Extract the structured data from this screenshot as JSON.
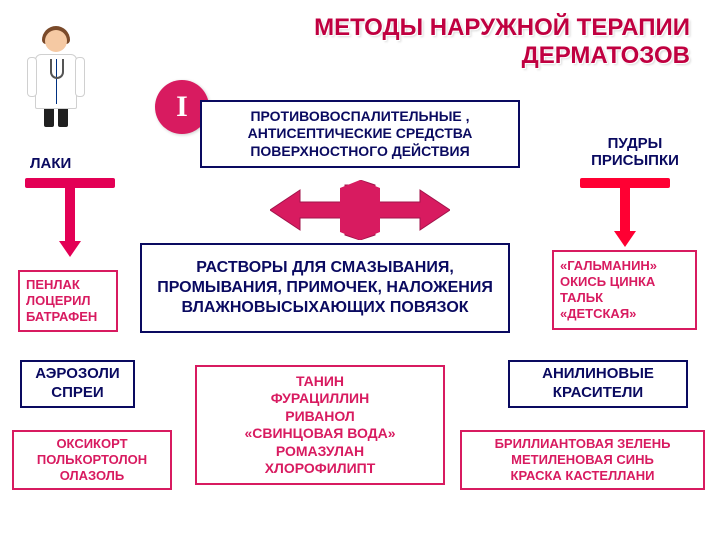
{
  "colors": {
    "accent_pink": "#d81b60",
    "accent_red": "#e30055",
    "accent_red2": "#ff0033",
    "navy": "#0a0a60",
    "title": "#c00040",
    "bg": "#ffffff"
  },
  "title": "МЕТОДЫ НАРУЖНОЙ ТЕРАПИИ ДЕРМАТОЗОВ",
  "stage_marker": "I",
  "labels": {
    "laki": "ЛАКИ",
    "pudry": "ПУДРЫ ПРИСЫПКИ"
  },
  "boxes": {
    "anti": {
      "text": "ПРОТИВОВОСПАЛИТЕЛЬНЫЕ , АНТИСЕПТИЧЕСКИЕ СРЕДСТВА ПОВЕРХНОСТНОГО ДЕЙСТВИЯ",
      "border": "#0a0a60",
      "text_color": "#0a0a60",
      "fontsize": 14
    },
    "rast": {
      "text": "РАСТВОРЫ ДЛЯ СМАЗЫВАНИЯ, ПРОМЫВАНИЯ, ПРИМОЧЕК, НАЛОЖЕНИЯ ВЛАЖНОВЫСЫХАЮЩИХ ПОВЯЗОК",
      "border": "#0a0a60",
      "text_color": "#0a0a60",
      "fontsize": 16
    },
    "pen": {
      "text": "ПЕНЛАК\nЛОЦЕРИЛ\nБАТРАФЕН",
      "border": "#d81b60",
      "text_color": "#d81b60",
      "fontsize": 13,
      "align": "left"
    },
    "galm": {
      "text": "«ГАЛЬМАНИН»\nОКИСЬ ЦИНКА\nТАЛЬК\n«ДЕТСКАЯ»",
      "border": "#d81b60",
      "text_color": "#d81b60",
      "fontsize": 13,
      "align": "left"
    },
    "aero": {
      "text": "АЭРОЗОЛИ\nСПРЕИ",
      "border": "#0a0a60",
      "text_color": "#0a0a60",
      "fontsize": 15
    },
    "anil": {
      "text": "АНИЛИНОВЫЕ КРАСИТЕЛИ",
      "border": "#0a0a60",
      "text_color": "#0a0a60",
      "fontsize": 15
    },
    "tanin": {
      "text": "ТАНИН\nФУРАЦИЛЛИН\nРИВАНОЛ\n«СВИНЦОВАЯ ВОДА»\nРОМАЗУЛАН\nХЛОРОФИЛИПТ",
      "border": "#d81b60",
      "text_color": "#d81b60",
      "fontsize": 14
    },
    "oksi": {
      "text": "ОКСИКОРТ\nПОЛЬКОРТОЛОН\nОЛАЗОЛЬ",
      "border": "#d81b60",
      "text_color": "#d81b60",
      "fontsize": 13
    },
    "brill": {
      "text": "БРИЛЛИАНТОВАЯ ЗЕЛЕНЬ\nМЕТИЛЕНОВАЯ СИНЬ\nКРАСКА КАСТЕЛЛАНИ",
      "border": "#d81b60",
      "text_color": "#d81b60",
      "fontsize": 13
    }
  },
  "diagram": {
    "type": "infographic",
    "big_arrow": {
      "fill": "#d81b60",
      "stroke": "#a0144b"
    },
    "t_marks": {
      "left": {
        "color": "#e30055"
      },
      "right": {
        "color": "#ff0033"
      }
    }
  }
}
